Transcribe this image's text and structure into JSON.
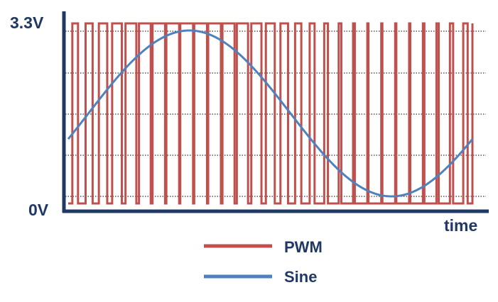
{
  "figure": {
    "y_top_label": "3.3V",
    "y_bottom_label": "0V",
    "x_label": "time"
  },
  "legend": [
    {
      "label": "PWM",
      "color": "#c0504d"
    },
    {
      "label": "Sine",
      "color": "#4f81bd"
    }
  ],
  "colors": {
    "axis": "#1f3864",
    "label": "#1f3864",
    "grid": "#000000",
    "pwm": "#c0504d",
    "sine": "#4f81bd"
  }
}
